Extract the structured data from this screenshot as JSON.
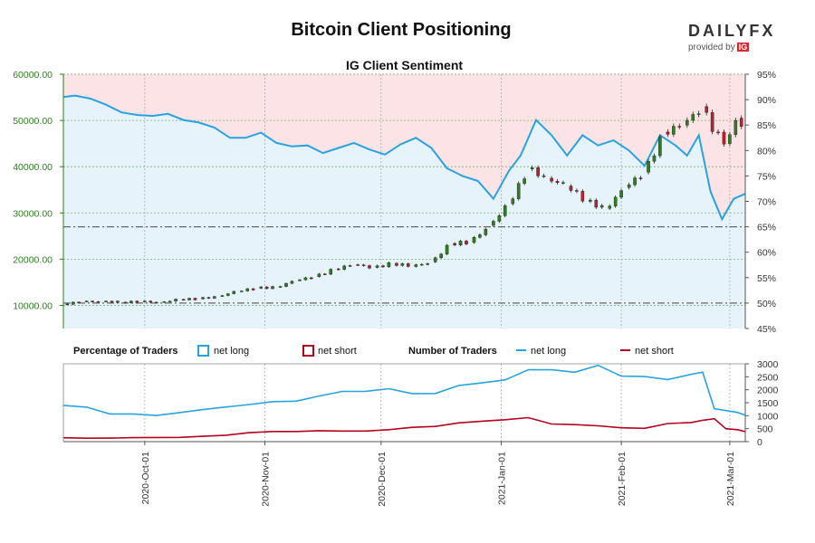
{
  "title": "Bitcoin Client Positioning",
  "logo": {
    "word": "DAILYFX",
    "provided_by": "provided by",
    "ig": "IG"
  },
  "chart_data": [
    {
      "type": "candlestick+line",
      "title": "IG Client Sentiment",
      "x_ticks": [
        "2020-Oct-01",
        "2020-Nov-01",
        "2020-Dec-01",
        "2021-Jan-01",
        "2021-Feb-01",
        "2021-Mar-01"
      ],
      "x_range": [
        "2020-09-10",
        "2021-03-05"
      ],
      "price_axis": {
        "ylim": [
          5000,
          60000
        ],
        "ticks": [
          "10000.00",
          "20000.00",
          "30000.00",
          "40000.00",
          "50000.00",
          "60000.00"
        ],
        "color": "#2e7d1f"
      },
      "sentiment_axis": {
        "ylim": [
          45,
          95
        ],
        "ticks": [
          "45%",
          "50%",
          "55%",
          "60%",
          "65%",
          "70%",
          "75%",
          "80%",
          "85%",
          "90%",
          "95%"
        ]
      },
      "reference_lines": {
        "net_long_pct": [
          50,
          65
        ]
      },
      "net_long_pct": {
        "dates": [
          "2020-09-10",
          "2020-09-13",
          "2020-09-17",
          "2020-09-21",
          "2020-09-25",
          "2020-09-29",
          "2020-10-03",
          "2020-10-07",
          "2020-10-11",
          "2020-10-15",
          "2020-10-19",
          "2020-10-23",
          "2020-10-27",
          "2020-10-31",
          "2020-11-04",
          "2020-11-08",
          "2020-11-12",
          "2020-11-16",
          "2020-11-20",
          "2020-11-24",
          "2020-11-28",
          "2020-12-02",
          "2020-12-06",
          "2020-12-10",
          "2020-12-14",
          "2020-12-18",
          "2020-12-22",
          "2020-12-26",
          "2020-12-30",
          "2021-01-03",
          "2021-01-06",
          "2021-01-10",
          "2021-01-14",
          "2021-01-18",
          "2021-01-22",
          "2021-01-26",
          "2021-01-30",
          "2021-02-03",
          "2021-02-07",
          "2021-02-11",
          "2021-02-15",
          "2021-02-18",
          "2021-02-21",
          "2021-02-24",
          "2021-02-27",
          "2021-03-02",
          "2021-03-05"
        ],
        "values": [
          90.5,
          90.8,
          90.2,
          89,
          87.5,
          87,
          86.8,
          87.2,
          86,
          85.5,
          84.5,
          82.5,
          82.5,
          83.5,
          81.5,
          80.8,
          81,
          79.5,
          80.5,
          81.5,
          80.2,
          79.2,
          81.2,
          82.5,
          80.5,
          76.5,
          75,
          74,
          70.5,
          76,
          79,
          86,
          83,
          79,
          83,
          81,
          82,
          80,
          77,
          83,
          81,
          79,
          83,
          72,
          66.5,
          70.5,
          71.5
        ]
      },
      "price": {
        "dates": [
          "2020-09-10",
          "2020-09-15",
          "2020-09-20",
          "2020-09-25",
          "2020-09-30",
          "2020-10-05",
          "2020-10-10",
          "2020-10-15",
          "2020-10-20",
          "2020-10-25",
          "2020-10-30",
          "2020-11-04",
          "2020-11-09",
          "2020-11-14",
          "2020-11-19",
          "2020-11-24",
          "2020-11-29",
          "2020-12-04",
          "2020-12-09",
          "2020-12-14",
          "2020-12-19",
          "2020-12-24",
          "2020-12-29",
          "2021-01-03",
          "2021-01-08",
          "2021-01-13",
          "2021-01-18",
          "2021-01-23",
          "2021-01-28",
          "2021-02-02",
          "2021-02-07",
          "2021-02-12",
          "2021-02-17",
          "2021-02-22",
          "2021-02-25",
          "2021-02-28",
          "2021-03-03",
          "2021-03-05"
        ],
        "close": [
          10300,
          10800,
          10900,
          10700,
          10800,
          10700,
          11300,
          11400,
          12000,
          13100,
          13700,
          14000,
          15400,
          16200,
          17900,
          18800,
          18200,
          19100,
          18400,
          19400,
          23400,
          23600,
          27300,
          32000,
          39500,
          37500,
          35800,
          32500,
          31000,
          35500,
          38800,
          47500,
          49000,
          53000,
          47500,
          45000,
          50500,
          48500
        ]
      },
      "traders": {
        "title": "Number of Traders",
        "ylim": [
          0,
          3000
        ],
        "ticks": [
          "0",
          "500",
          "1000",
          "1500",
          "2000",
          "2500",
          "3000"
        ],
        "dates": [
          "2020-09-10",
          "2020-09-16",
          "2020-09-22",
          "2020-09-28",
          "2020-10-04",
          "2020-10-10",
          "2020-10-16",
          "2020-10-22",
          "2020-10-28",
          "2020-11-03",
          "2020-11-09",
          "2020-11-15",
          "2020-11-21",
          "2020-11-27",
          "2020-12-03",
          "2020-12-09",
          "2020-12-15",
          "2020-12-21",
          "2020-12-27",
          "2021-01-02",
          "2021-01-08",
          "2021-01-14",
          "2021-01-20",
          "2021-01-26",
          "2021-02-01",
          "2021-02-07",
          "2021-02-13",
          "2021-02-19",
          "2021-02-22",
          "2021-02-25",
          "2021-02-28",
          "2021-03-03",
          "2021-03-05"
        ],
        "series": [
          {
            "name": "net long",
            "color": "#29a3e0",
            "values": [
              1400,
              1300,
              1100,
              1050,
              1000,
              1150,
              1200,
              1350,
              1450,
              1500,
              1600,
              1750,
              1900,
              2000,
              2000,
              1850,
              1900,
              2100,
              2300,
              2400,
              2700,
              2850,
              2650,
              2900,
              2600,
              2450,
              2400,
              2650,
              2600,
              1300,
              1200,
              1100,
              1050
            ]
          },
          {
            "name": "net short",
            "color": "#b6001c",
            "values": [
              150,
              130,
              140,
              150,
              160,
              170,
              200,
              250,
              350,
              380,
              400,
              420,
              400,
              420,
              450,
              550,
              600,
              700,
              800,
              850,
              900,
              700,
              650,
              600,
              550,
              500,
              700,
              750,
              800,
              900,
              500,
              450,
              400
            ]
          }
        ]
      }
    }
  ],
  "legend": {
    "pct_title": "Percentage of Traders",
    "pct_long": "net long",
    "pct_short": "net short",
    "num_title": "Number of Traders",
    "num_long": "net long",
    "num_short": "net short"
  },
  "colors": {
    "long_fill": "#e6f3fa",
    "short_fill": "#fbe3e6",
    "long_line": "#29a3e0",
    "short_line": "#b6001c",
    "candle_up": "#2e7d1f",
    "candle_down": "#b8212e",
    "axis_green": "#2e7d1f"
  }
}
